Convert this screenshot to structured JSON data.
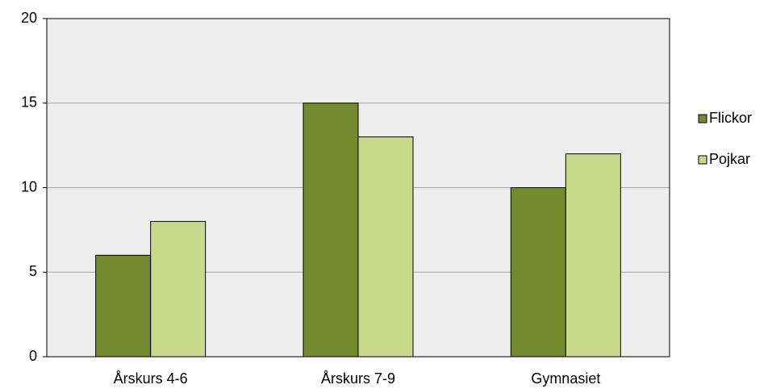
{
  "chart_data": {
    "type": "bar",
    "categories": [
      "Årskurs 4-6",
      "Årskurs 7-9",
      "Gymnasiet"
    ],
    "series": [
      {
        "name": "Flickor",
        "color": "#77892e",
        "values": [
          6,
          15,
          10
        ]
      },
      {
        "name": "Pojkar",
        "color": "#c9d88a",
        "values": [
          8,
          13,
          12
        ]
      }
    ],
    "ylim": [
      0,
      20
    ],
    "yticks": [
      0,
      5,
      10,
      15,
      20
    ],
    "grid": true,
    "legend": "right"
  }
}
